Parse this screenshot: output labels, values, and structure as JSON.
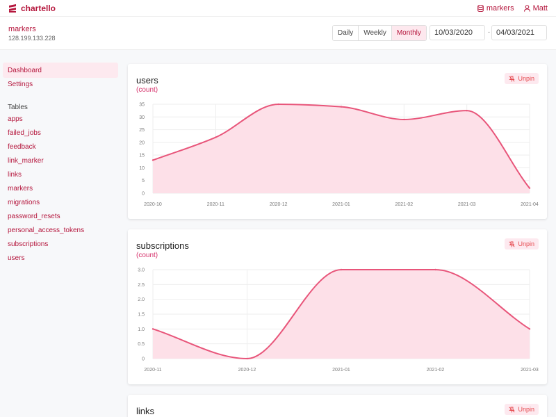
{
  "app": {
    "brand": "chartello"
  },
  "topbar": {
    "database_label": "markers",
    "user_label": "Matt"
  },
  "subheader": {
    "db_name": "markers",
    "db_host": "128.199.133.228",
    "periods": [
      {
        "label": "Daily",
        "active": false
      },
      {
        "label": "Weekly",
        "active": false
      },
      {
        "label": "Monthly",
        "active": true
      }
    ],
    "date_from": "10/03/2020",
    "date_to": "04/03/2021",
    "date_separator": "-"
  },
  "sidebar": {
    "nav": [
      "Dashboard",
      "Settings"
    ],
    "tables_heading": "Tables",
    "tables": [
      "apps",
      "failed_jobs",
      "feedback",
      "link_marker",
      "links",
      "markers",
      "migrations",
      "password_resets",
      "personal_access_tokens",
      "subscriptions",
      "users"
    ]
  },
  "colors": {
    "accent": "#e8557a",
    "accent_fill": "#fde0e8",
    "brand": "#b5173d",
    "unpin_bg": "#fde9ef",
    "unpin_text": "#e5484d"
  },
  "cards": [
    {
      "title": "users",
      "subtitle": "(count)",
      "unpin_label": "Unpin"
    },
    {
      "title": "subscriptions",
      "subtitle": "(count)",
      "unpin_label": "Unpin"
    },
    {
      "title": "links",
      "subtitle": "",
      "unpin_label": "Unpin"
    }
  ],
  "chart_data": [
    {
      "type": "area",
      "title": "users",
      "subtitle": "(count)",
      "categories": [
        "2020-10",
        "2020-11",
        "2020-12",
        "2021-01",
        "2021-02",
        "2021-03",
        "2021-04"
      ],
      "values": [
        13,
        22,
        35,
        34,
        29,
        32.5,
        2
      ],
      "yticks": [
        0,
        5,
        10,
        15,
        20,
        25,
        30,
        35
      ],
      "ytick_labels": [
        "0",
        "5",
        "10",
        "15",
        "20",
        "25",
        "30",
        "35"
      ],
      "ylim": [
        0,
        35
      ],
      "grid": true
    },
    {
      "type": "area",
      "title": "subscriptions",
      "subtitle": "(count)",
      "categories": [
        "2020-11",
        "2020-12",
        "2021-01",
        "2021-02",
        "2021-03"
      ],
      "values": [
        1,
        0,
        3,
        3,
        1
      ],
      "yticks": [
        0,
        0.5,
        1,
        1.5,
        2,
        2.5,
        3
      ],
      "ytick_labels": [
        "0",
        "0.5",
        "1.0",
        "1.5",
        "2.0",
        "2.5",
        "3.0"
      ],
      "ylim": [
        0,
        3
      ],
      "grid": true
    }
  ]
}
